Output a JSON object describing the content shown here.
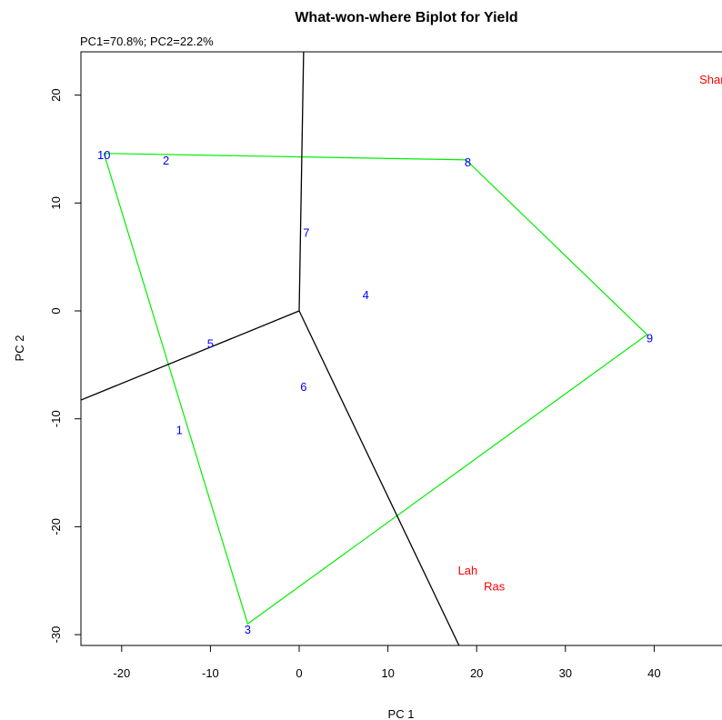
{
  "chart_data": {
    "type": "scatter",
    "title": "What-won-where Biplot for Yield",
    "subtitle": "PC1=70.8%; PC2=22.2%",
    "xlabel": "PC 1",
    "ylabel": "PC 2",
    "xlim": [
      -25,
      48
    ],
    "ylim": [
      -31.5,
      24
    ],
    "xticks": [
      -20,
      -10,
      0,
      10,
      20,
      30,
      40
    ],
    "yticks": [
      -30,
      -20,
      -10,
      0,
      10,
      20
    ],
    "xtick_labels": [
      "-20",
      "-10",
      "0",
      "10",
      "20",
      "30",
      "40"
    ],
    "ytick_labels": [
      "-30",
      "-20",
      "-10",
      "0",
      "10",
      "20"
    ],
    "grid": false,
    "genotypes": [
      {
        "label": "1",
        "x": -13.5,
        "y": -11
      },
      {
        "label": "2",
        "x": -15,
        "y": 14
      },
      {
        "label": "3",
        "x": -5.8,
        "y": -29.5
      },
      {
        "label": "4",
        "x": 7.5,
        "y": 1.5
      },
      {
        "label": "5",
        "x": -10,
        "y": -3
      },
      {
        "label": "6",
        "x": 0.5,
        "y": -7
      },
      {
        "label": "7",
        "x": 0.8,
        "y": 7.3
      },
      {
        "label": "8",
        "x": 19,
        "y": 13.8
      },
      {
        "label": "9",
        "x": 39.5,
        "y": -2.5
      },
      {
        "label": "10",
        "x": -22,
        "y": 14.5
      }
    ],
    "environments": [
      {
        "label": "Shar",
        "x": 46.5,
        "y": 21.5
      },
      {
        "label": "Lah",
        "x": 19,
        "y": -24
      },
      {
        "label": "Ras",
        "x": 22,
        "y": -25.5
      }
    ],
    "polygon": [
      [
        -22,
        14.6
      ],
      [
        18.8,
        14
      ],
      [
        39.2,
        -2.2
      ],
      [
        -5.8,
        -29
      ],
      [
        -22,
        14.6
      ]
    ],
    "sector_rays": [
      [
        [
          0,
          0
        ],
        [
          0.5,
          24
        ]
      ],
      [
        [
          0,
          0
        ],
        [
          -25,
          -8.4
        ]
      ],
      [
        [
          0,
          0
        ],
        [
          18.3,
          -31.5
        ]
      ]
    ]
  },
  "colors": {
    "genotype": "#0000ff",
    "environment": "#ff0000",
    "polygon": "#00ee00",
    "rays": "#000000",
    "axis": "#000000"
  }
}
